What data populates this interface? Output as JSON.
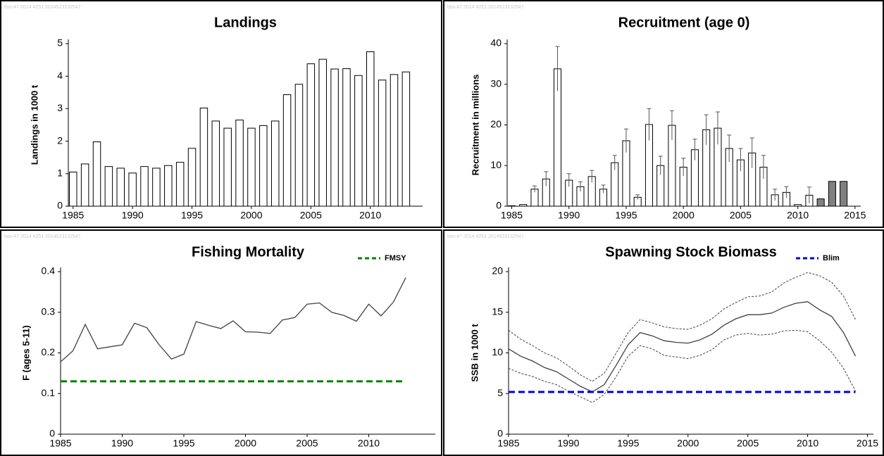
{
  "chart_data": [
    {
      "type": "bar",
      "title": "Landings",
      "ylabel": "Landings in 1000 t",
      "note": "bss-47  2014  4251  2014523132547",
      "x": [
        1985,
        1986,
        1987,
        1988,
        1989,
        1990,
        1991,
        1992,
        1993,
        1994,
        1995,
        1996,
        1997,
        1998,
        1999,
        2000,
        2001,
        2002,
        2003,
        2004,
        2005,
        2006,
        2007,
        2008,
        2009,
        2010,
        2011,
        2012,
        2013
      ],
      "values": [
        1.05,
        1.3,
        1.98,
        1.22,
        1.17,
        1.02,
        1.22,
        1.17,
        1.25,
        1.35,
        1.78,
        3.02,
        2.62,
        2.4,
        2.65,
        2.4,
        2.48,
        2.62,
        3.43,
        3.75,
        4.38,
        4.52,
        4.22,
        4.23,
        4.02,
        4.75,
        3.88,
        4.05,
        4.13
      ],
      "color": "#ffffff",
      "xlim": [
        1984.6,
        2014.4
      ],
      "xticks": [
        1985,
        1990,
        1995,
        2000,
        2005,
        2010
      ],
      "ylim": [
        0,
        5
      ],
      "yticks": [
        0,
        1,
        2,
        3,
        4,
        5
      ]
    },
    {
      "type": "bar",
      "title": "Recruitment (age 0)",
      "ylabel": "Recruitment in millions",
      "note": "bss-47  2014  4251  2014523132547",
      "x": [
        1985,
        1986,
        1987,
        1988,
        1989,
        1990,
        1991,
        1992,
        1993,
        1994,
        1995,
        1996,
        1997,
        1998,
        1999,
        2000,
        2001,
        2002,
        2003,
        2004,
        2005,
        2006,
        2007,
        2008,
        2009,
        2010,
        2011,
        2012,
        2013,
        2014
      ],
      "values": [
        0.1,
        0.4,
        4.2,
        6.7,
        33.8,
        6.4,
        4.8,
        7.3,
        4.2,
        10.7,
        16.1,
        2.2,
        20.1,
        10.0,
        19.9,
        9.6,
        13.9,
        18.8,
        19.2,
        14.2,
        11.4,
        13.1,
        9.6,
        2.8,
        3.4,
        0.4,
        2.7,
        1.8,
        6.1,
        6.1
      ],
      "errors": [
        null,
        null,
        0.8,
        1.8,
        5.5,
        1.6,
        1.2,
        1.5,
        1.0,
        1.8,
        2.9,
        0.6,
        3.9,
        2.3,
        3.6,
        2.2,
        2.6,
        3.7,
        4.0,
        3.3,
        2.8,
        3.7,
        2.9,
        1.4,
        1.4,
        null,
        2.0,
        null,
        null,
        null
      ],
      "colors": [
        "#ffffff",
        "#ffffff",
        "#ffffff",
        "#ffffff",
        "#ffffff",
        "#ffffff",
        "#ffffff",
        "#ffffff",
        "#ffffff",
        "#ffffff",
        "#ffffff",
        "#ffffff",
        "#ffffff",
        "#ffffff",
        "#ffffff",
        "#ffffff",
        "#ffffff",
        "#ffffff",
        "#ffffff",
        "#ffffff",
        "#ffffff",
        "#ffffff",
        "#ffffff",
        "#ffffff",
        "#ffffff",
        "#ffffff",
        "#ffffff",
        "#808080",
        "#808080",
        "#808080"
      ],
      "xlim": [
        1984.6,
        2015.5
      ],
      "xticks": [
        1985,
        1990,
        1995,
        2000,
        2005,
        2010,
        2015
      ],
      "ylim": [
        0,
        40
      ],
      "yticks": [
        0,
        10,
        20,
        30,
        40
      ]
    },
    {
      "type": "line",
      "title": "Fishing Mortality",
      "ylabel": "F (ages 5-11)",
      "note": "bss-47  2014  4251  2014523132547",
      "x": [
        1985,
        1986,
        1987,
        1988,
        1989,
        1990,
        1991,
        1992,
        1993,
        1994,
        1995,
        1996,
        1997,
        1998,
        1999,
        2000,
        2001,
        2002,
        2003,
        2004,
        2005,
        2006,
        2007,
        2008,
        2009,
        2010,
        2011,
        2012,
        2013
      ],
      "series": [
        {
          "color": "#404040",
          "line_style": "solid",
          "values": [
            0.178,
            0.205,
            0.27,
            0.21,
            0.215,
            0.22,
            0.273,
            0.262,
            0.22,
            0.185,
            0.197,
            0.277,
            0.268,
            0.26,
            0.279,
            0.252,
            0.251,
            0.248,
            0.281,
            0.287,
            0.32,
            0.323,
            0.3,
            0.292,
            0.278,
            0.32,
            0.291,
            0.325,
            0.385
          ]
        }
      ],
      "reference_lines": [
        {
          "name": "FMSY",
          "value": 0.13,
          "color": "#008000"
        }
      ],
      "legend": "upper right",
      "xlim": [
        1985,
        2015.4
      ],
      "xticks": [
        1985,
        1990,
        1995,
        2000,
        2005,
        2010
      ],
      "ylim": [
        0,
        0.4
      ],
      "yticks": [
        0,
        0.1,
        0.2,
        0.3,
        0.4
      ]
    },
    {
      "type": "line",
      "title": "Spawning Stock Biomass",
      "ylabel": "SSB in 1000 t",
      "note": "bss-47  2014  4251  2014523132547",
      "x": [
        1985,
        1986,
        1987,
        1988,
        1989,
        1990,
        1991,
        1992,
        1993,
        1994,
        1995,
        1996,
        1997,
        1998,
        1999,
        2000,
        2001,
        2002,
        2003,
        2004,
        2005,
        2006,
        2007,
        2008,
        2009,
        2010,
        2011,
        2012,
        2013,
        2014
      ],
      "series": [
        {
          "color": "#404040",
          "line_style": "solid",
          "values": [
            10.5,
            9.6,
            9.0,
            8.2,
            7.7,
            6.8,
            5.9,
            5.2,
            6.1,
            8.5,
            11.0,
            12.5,
            12.1,
            11.5,
            11.3,
            11.2,
            11.6,
            12.3,
            13.4,
            14.2,
            14.7,
            14.7,
            14.9,
            15.6,
            16.1,
            16.3,
            15.3,
            14.5,
            12.5,
            9.6
          ]
        },
        {
          "color": "#404040",
          "line_style": "dotted",
          "values": [
            12.8,
            11.7,
            10.9,
            10.0,
            9.4,
            8.4,
            7.3,
            6.5,
            7.5,
            10.0,
            12.5,
            14.1,
            13.7,
            13.2,
            13.0,
            12.9,
            13.4,
            14.2,
            15.4,
            16.2,
            16.9,
            17.0,
            17.5,
            18.6,
            19.3,
            19.9,
            19.5,
            18.7,
            17.0,
            14.1
          ]
        },
        {
          "color": "#404040",
          "line_style": "dotted",
          "values": [
            8.1,
            7.5,
            7.1,
            6.5,
            6.1,
            5.3,
            4.6,
            3.9,
            4.9,
            7.1,
            9.6,
            10.9,
            10.5,
            9.7,
            9.5,
            9.3,
            9.7,
            10.4,
            11.6,
            12.2,
            12.4,
            12.2,
            12.3,
            12.7,
            12.8,
            12.6,
            11.5,
            10.1,
            8.1,
            5.3
          ]
        }
      ],
      "reference_lines": [
        {
          "name": "Blim",
          "value": 5.2,
          "color": "#0000e0"
        }
      ],
      "legend": "upper right",
      "xlim": [
        1985,
        2015.5
      ],
      "xticks": [
        1985,
        1990,
        1995,
        2000,
        2005,
        2010,
        2015
      ],
      "ylim": [
        0,
        20
      ],
      "yticks": [
        0,
        5,
        10,
        15,
        20
      ]
    }
  ]
}
